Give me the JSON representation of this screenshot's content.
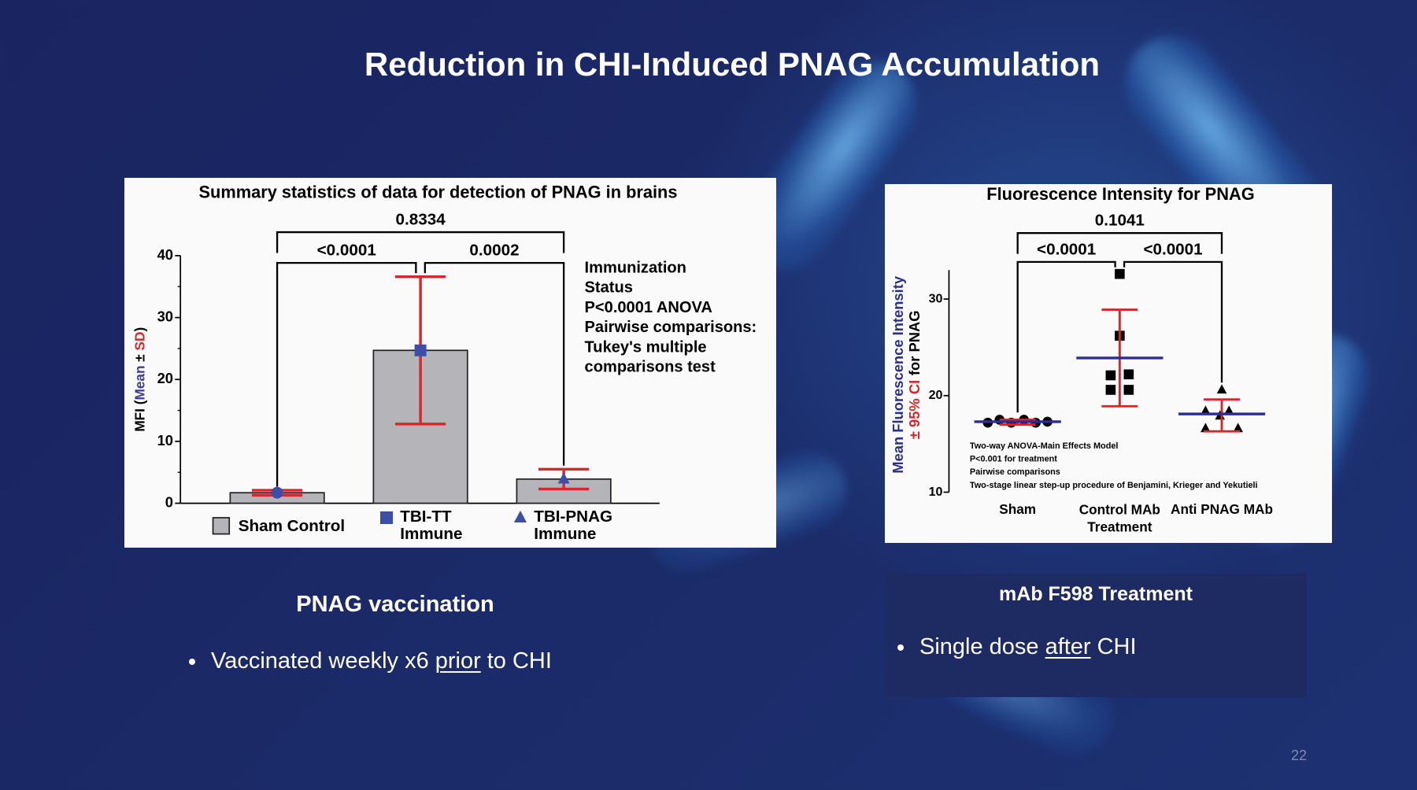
{
  "title": "Reduction in CHI-Induced PNAG Accumulation",
  "left_panel": {
    "heading": "PNAG vaccination",
    "bullet": {
      "parts": [
        "Vaccinated weekly x6",
        "prior",
        "to CHI"
      ],
      "underlined": 1
    }
  },
  "right_panel": {
    "heading": "mAb F598 Treatment",
    "bullet": {
      "parts": [
        "Single dose",
        "after",
        "CHI"
      ],
      "underlined": 1
    }
  },
  "page_number": 22,
  "chart_data": [
    {
      "type": "bar",
      "title": "Summary statistics of data for detection of PNAG in brains",
      "y_label": [
        "MFI (",
        "Mean",
        " ± ",
        "SD",
        ")"
      ],
      "y_label_colors": [
        "#000000",
        "#3b3b9c",
        "#000000",
        "#d62728",
        "#000000"
      ],
      "categories": [
        "Sham Control",
        "TBI-TT Immune",
        "TBI-PNAG Immune"
      ],
      "values": [
        1.7,
        24.7,
        3.9
      ],
      "errors": [
        0.4,
        11.9,
        1.6
      ],
      "color": "#b5b5b9",
      "error_color": "#d9262a",
      "marker_color": "#3c4ea8",
      "markers": [
        "circle",
        "square",
        "triangle"
      ],
      "legend_markers": [
        "bar",
        "square",
        "triangle"
      ],
      "ylim": [
        0,
        40
      ],
      "yticks": [
        0,
        10,
        20,
        30,
        40
      ],
      "yticks_minor": [
        5,
        15,
        25,
        35
      ],
      "comparisons": [
        {
          "label": "0.8334",
          "between": [
            "Sham Control",
            "TBI-PNAG Immune"
          ]
        },
        {
          "label": "<0.0001",
          "between": [
            "Sham Control",
            "TBI-TT Immune"
          ]
        },
        {
          "label": "0.0002",
          "between": [
            "TBI-TT Immune",
            "TBI-PNAG Immune"
          ]
        }
      ],
      "annotation": [
        "Immunization",
        "Status",
        "P<0.0001 ANOVA",
        "Pairwise comparisons:",
        "Tukey's multiple",
        "comparisons test"
      ]
    },
    {
      "type": "dot",
      "title": "Fluorescence Intensity for PNAG",
      "y_label": [
        "Mean Fluorescence Intensity",
        "± 95% CI",
        "for PNAG"
      ],
      "y_label_colors": [
        "#2b2f8f",
        "#d9262a",
        "#000000"
      ],
      "categories": [
        "Sham",
        "Control MAb Treatment",
        "Anti PNAG MAb"
      ],
      "groups": [
        {
          "values": [
            17.2,
            17.5,
            17.2,
            17.5,
            17.2,
            17.3
          ],
          "mean": 17.3,
          "ci_low": 17.0,
          "ci_high": 17.5
        },
        {
          "values": [
            32.6,
            26.2,
            22.1,
            20.6,
            22.2,
            20.6
          ],
          "mean": 23.9,
          "ci_low": 18.9,
          "ci_high": 28.9
        },
        {
          "values": [
            20.6,
            18.4,
            18.4,
            16.6,
            16.6,
            17.9
          ],
          "mean": 18.1,
          "ci_low": 16.3,
          "ci_high": 19.6
        }
      ],
      "markers": [
        "circle",
        "square",
        "triangle"
      ],
      "marker_color": "#000000",
      "mean_color": "#2b2f8f",
      "ci_color": "#d9262a",
      "ylim": [
        10,
        33
      ],
      "yticks": [
        10,
        20,
        30
      ],
      "comparisons": [
        {
          "label": "0.1041",
          "between": [
            "Sham",
            "Anti PNAG MAb"
          ]
        },
        {
          "label": "<0.0001",
          "between": [
            "Sham",
            "Control MAb Treatment"
          ]
        },
        {
          "label": "<0.0001",
          "between": [
            "Control MAb Treatment",
            "Anti PNAG MAb"
          ]
        }
      ],
      "annotation": [
        "Two-way ANOVA-Main Effects Model",
        "P<0.001 for treatment",
        "Pairwise comparisons",
        "Two-stage linear step-up procedure of Benjamini, Krieger and Yekutieli"
      ]
    }
  ]
}
